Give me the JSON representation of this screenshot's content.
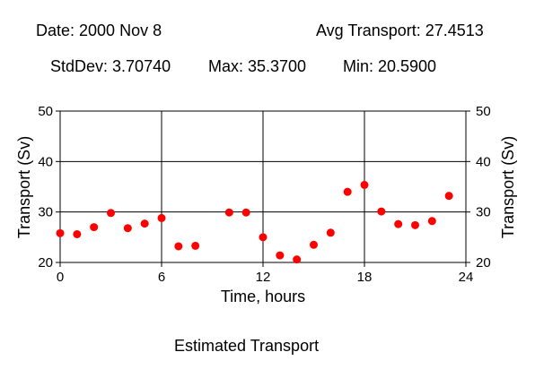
{
  "header": {
    "date": "Date: 2000 Nov 8",
    "avg": "Avg Transport: 27.4513",
    "stddev": "StdDev: 3.70740",
    "max": "Max: 35.3700",
    "min": "Min: 20.5900"
  },
  "caption": "Estimated Transport",
  "chart_data": {
    "type": "scatter",
    "title": "",
    "xlabel": "Time, hours",
    "ylabel": "Transport (Sv)",
    "ylabel_right": "Transport (Sv)",
    "xlim": [
      0,
      24
    ],
    "ylim": [
      20,
      50
    ],
    "xticks": [
      0,
      6,
      12,
      18,
      24
    ],
    "yticks": [
      20,
      30,
      40,
      50
    ],
    "grid": true,
    "marker_color": "#ff0000",
    "series": [
      {
        "x": [
          0,
          1,
          2,
          3,
          4,
          5,
          6,
          7,
          8,
          10,
          11,
          12,
          13,
          14,
          15,
          16,
          17,
          18,
          19,
          20,
          21,
          22,
          23
        ],
        "y": [
          25.8,
          25.6,
          27.0,
          29.8,
          26.8,
          27.7,
          28.8,
          23.2,
          23.3,
          29.9,
          29.9,
          25.0,
          21.4,
          20.59,
          23.5,
          25.9,
          34.0,
          35.37,
          30.1,
          27.6,
          27.4,
          28.2,
          33.2
        ]
      }
    ]
  }
}
